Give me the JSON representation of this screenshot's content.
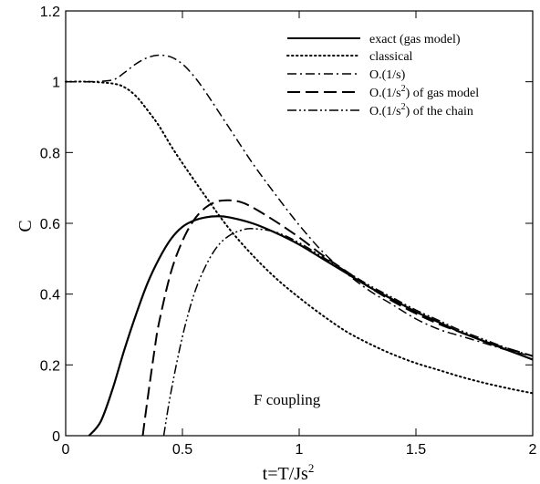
{
  "chart_data": {
    "type": "line",
    "xlabel": {
      "base": "t=T/Js",
      "sup": "2"
    },
    "ylabel": "C",
    "xlim": [
      0,
      2
    ],
    "ylim": [
      0,
      1.2
    ],
    "xticks": [
      0,
      0.5,
      1,
      1.5,
      2
    ],
    "xtick_labels": [
      "0",
      "0.5",
      "1",
      "1.5",
      "2"
    ],
    "yticks": [
      0,
      0.2,
      0.4,
      0.6,
      0.8,
      1,
      1.2
    ],
    "ytick_labels": [
      "0",
      "0.2",
      "0.4",
      "0.6",
      "0.8",
      "1",
      "1.2"
    ],
    "grid": false,
    "legend_position": "top-right",
    "annotation": "F coupling",
    "series": [
      {
        "name": "exact (gas model)",
        "style": "solid",
        "legend": {
          "main": "exact (gas model)"
        },
        "x": [
          0.1,
          0.15,
          0.2,
          0.25,
          0.3,
          0.35,
          0.4,
          0.45,
          0.5,
          0.55,
          0.6,
          0.65,
          0.7,
          0.8,
          0.9,
          1.0,
          1.1,
          1.2,
          1.3,
          1.4,
          1.5,
          1.6,
          1.7,
          1.8,
          1.9,
          2.0
        ],
        "y": [
          0.0,
          0.04,
          0.13,
          0.24,
          0.34,
          0.43,
          0.5,
          0.555,
          0.59,
          0.608,
          0.617,
          0.62,
          0.617,
          0.6,
          0.573,
          0.54,
          0.5,
          0.46,
          0.42,
          0.385,
          0.35,
          0.32,
          0.29,
          0.265,
          0.24,
          0.215
        ]
      },
      {
        "name": "classical",
        "style": "dotted",
        "legend": {
          "main": "classical"
        },
        "x": [
          0.0,
          0.1,
          0.2,
          0.25,
          0.3,
          0.35,
          0.4,
          0.45,
          0.5,
          0.6,
          0.7,
          0.8,
          0.9,
          1.0,
          1.1,
          1.2,
          1.3,
          1.4,
          1.5,
          1.6,
          1.7,
          1.8,
          1.9,
          2.0
        ],
        "y": [
          1.0,
          1.0,
          0.995,
          0.985,
          0.96,
          0.92,
          0.875,
          0.82,
          0.77,
          0.675,
          0.585,
          0.51,
          0.445,
          0.39,
          0.34,
          0.295,
          0.26,
          0.23,
          0.205,
          0.185,
          0.165,
          0.148,
          0.133,
          0.12
        ]
      },
      {
        "name": "O.(1/s)",
        "style": "dashdot",
        "legend": {
          "main": "O.(1/s)"
        },
        "x": [
          0.0,
          0.1,
          0.2,
          0.25,
          0.3,
          0.35,
          0.4,
          0.45,
          0.5,
          0.55,
          0.6,
          0.7,
          0.8,
          0.9,
          1.0,
          1.1,
          1.2,
          1.3,
          1.4,
          1.5,
          1.6,
          1.7,
          1.8,
          1.9,
          2.0
        ],
        "y": [
          1.0,
          1.0,
          1.005,
          1.025,
          1.05,
          1.068,
          1.075,
          1.07,
          1.05,
          1.015,
          0.97,
          0.87,
          0.77,
          0.68,
          0.595,
          0.52,
          0.46,
          0.41,
          0.37,
          0.33,
          0.3,
          0.28,
          0.26,
          0.24,
          0.225
        ]
      },
      {
        "name": "O.(1/s²) of gas model",
        "style": "dashed",
        "legend": {
          "pre": "O.(1/s",
          "sup": "2",
          "post": ") of gas model"
        },
        "x": [
          0.33,
          0.35,
          0.38,
          0.4,
          0.45,
          0.5,
          0.55,
          0.6,
          0.65,
          0.7,
          0.75,
          0.8,
          0.9,
          1.0,
          1.1,
          1.2,
          1.3,
          1.4,
          1.5,
          1.6,
          1.7,
          1.8,
          1.9,
          2.0
        ],
        "y": [
          0.0,
          0.1,
          0.24,
          0.32,
          0.46,
          0.55,
          0.61,
          0.645,
          0.662,
          0.665,
          0.66,
          0.645,
          0.605,
          0.56,
          0.51,
          0.465,
          0.42,
          0.38,
          0.345,
          0.315,
          0.29,
          0.265,
          0.245,
          0.225
        ]
      },
      {
        "name": "O.(1/s²) of the chain",
        "style": "dashdotdot",
        "legend": {
          "pre": "O.(1/s",
          "sup": "2",
          "post": ") of the chain"
        },
        "x": [
          0.42,
          0.45,
          0.5,
          0.55,
          0.6,
          0.65,
          0.7,
          0.75,
          0.8,
          0.9,
          1.0,
          1.1,
          1.2,
          1.3,
          1.4,
          1.5,
          1.6,
          1.7,
          1.8,
          1.9,
          2.0
        ],
        "y": [
          0.0,
          0.12,
          0.28,
          0.4,
          0.48,
          0.535,
          0.565,
          0.58,
          0.585,
          0.575,
          0.545,
          0.505,
          0.465,
          0.425,
          0.39,
          0.355,
          0.325,
          0.295,
          0.27,
          0.245,
          0.225
        ]
      }
    ]
  }
}
